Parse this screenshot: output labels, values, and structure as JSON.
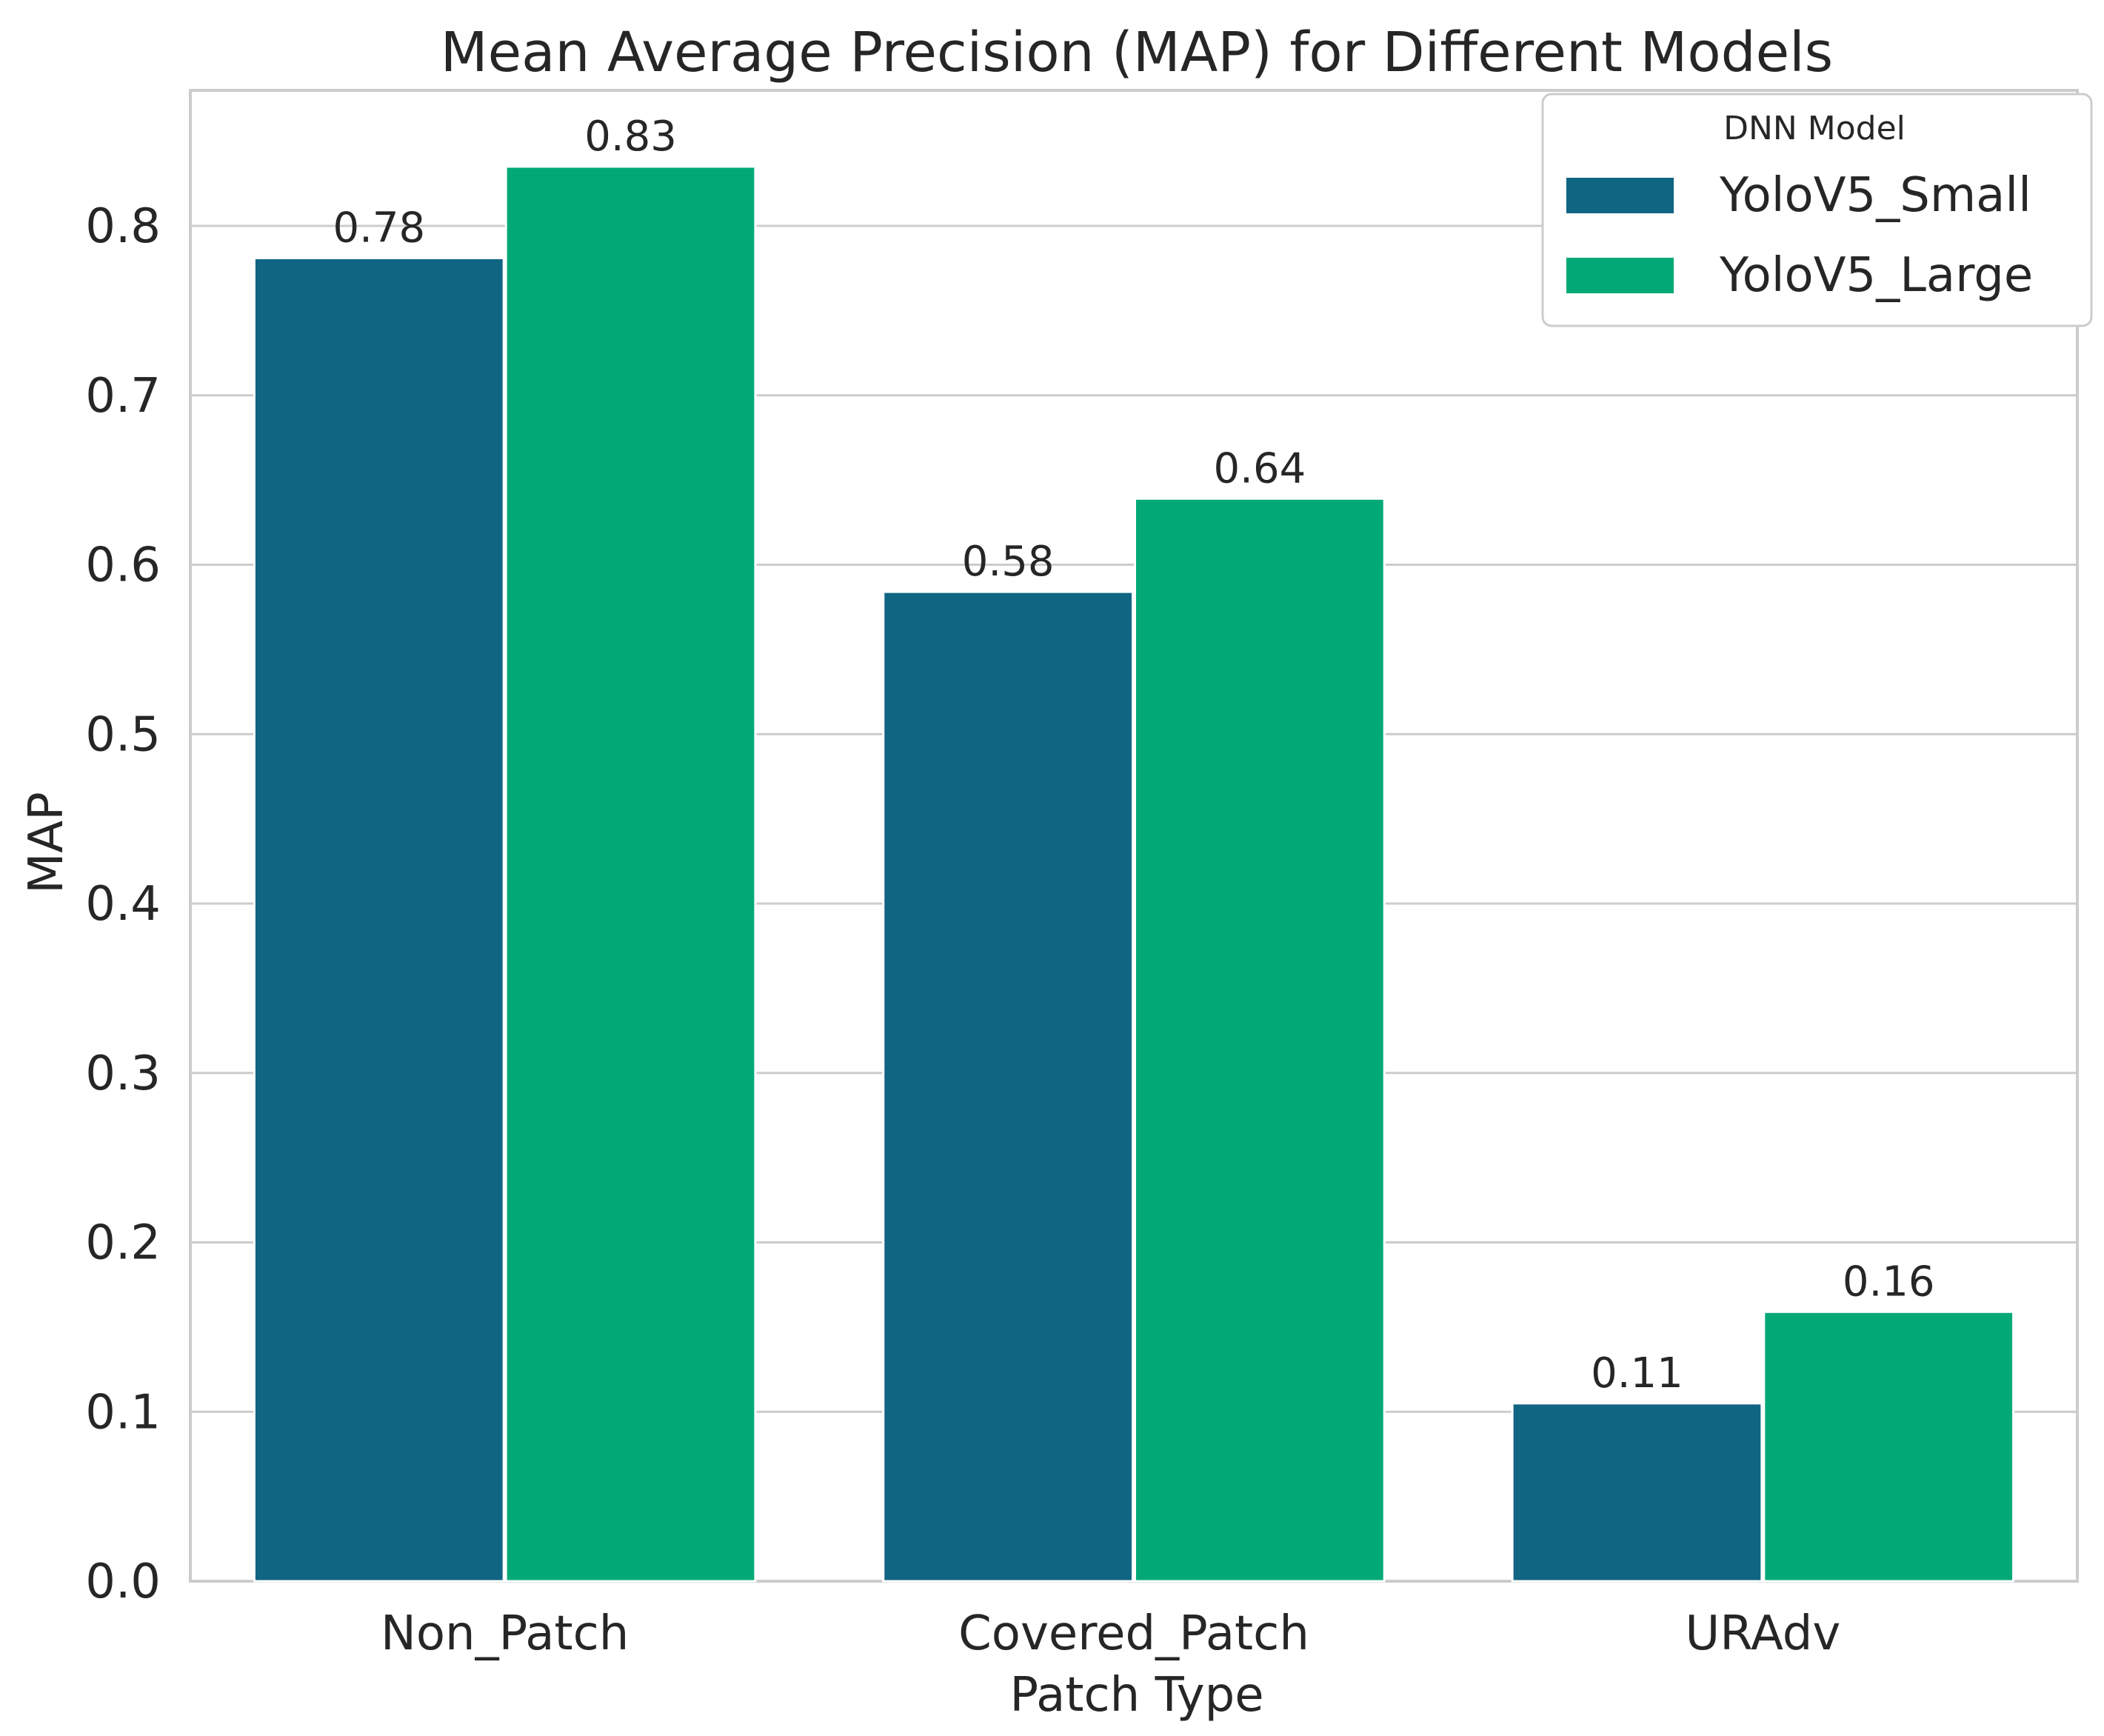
{
  "chart_data": {
    "type": "bar",
    "title": "Mean Average Precision (MAP) for Different Models",
    "xlabel": "Patch Type",
    "ylabel": "MAP",
    "categories": [
      "Non_Patch",
      "Covered_Patch",
      "URAdv"
    ],
    "series": [
      {
        "name": "YoloV5_Small",
        "color": "#106583",
        "values": [
          0.781,
          0.584,
          0.105
        ],
        "labels": [
          "0.78",
          "0.58",
          "0.11"
        ]
      },
      {
        "name": "YoloV5_Large",
        "color": "#02a977",
        "values": [
          0.835,
          0.639,
          0.159
        ],
        "labels": [
          "0.83",
          "0.64",
          "0.16"
        ]
      }
    ],
    "ylim": [
      0.0,
      0.88
    ],
    "yticks": [
      "0.0",
      "0.1",
      "0.2",
      "0.3",
      "0.4",
      "0.5",
      "0.6",
      "0.7",
      "0.8"
    ],
    "grid": true,
    "legend": {
      "title": "DNN Model",
      "position": "top-right"
    }
  }
}
